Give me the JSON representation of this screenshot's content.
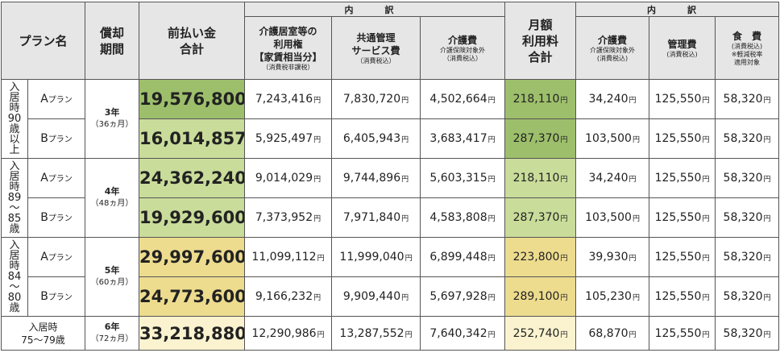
{
  "headers": {
    "plan": "プラン名",
    "period_1": "償却",
    "period_2": "期間",
    "prepay_1": "前払い金",
    "prepay_2": "合計",
    "uchiwake": "内　訳",
    "col_kyoshitsu_1": "介護居室等の",
    "col_kyoshitsu_2": "利用権",
    "col_kyoshitsu_3": "【家賃相当分】",
    "col_kyoshitsu_4": "（消費税非課税）",
    "col_kyotsu_1": "共通管理",
    "col_kyotsu_2": "サービス費",
    "col_kyotsu_3": "（消費税込）",
    "col_kaigo_1": "介護費",
    "col_kaigo_2": "介護保険対象外",
    "col_kaigo_3": "（消費税込）",
    "monthly_1": "月額",
    "monthly_2": "利用料",
    "monthly_3": "合計",
    "m_kaigo_1": "介護費",
    "m_kaigo_2": "介護保険対象外",
    "m_kaigo_3": "(消費税込)",
    "m_kanri_1": "管理費",
    "m_kanri_2": "(消費税込)",
    "m_shokuhi_1": "食　費",
    "m_shokuhi_2": "(消費税込)",
    "m_shokuhi_3": "※軽減税率",
    "m_shokuhi_4": "適用対象"
  },
  "yen": "円",
  "groups": [
    {
      "age_chars": [
        "入",
        "居",
        "時",
        "90",
        "歳",
        "以",
        "上"
      ],
      "period_main": "3年",
      "period_sub": "（36ヵ月）",
      "rows": [
        {
          "plan_letter": "A",
          "plan_suffix": "プラン",
          "prepay": "19,576,800",
          "kyoshitsu": "7,243,416",
          "kyotsu": "7,830,720",
          "kaigo": "4,502,664",
          "monthly": "218,110",
          "m_kaigo": "34,240",
          "m_kanri": "125,550",
          "m_shokuhi": "58,320"
        },
        {
          "plan_letter": "B",
          "plan_suffix": "プラン",
          "prepay": "16,014,857",
          "kyoshitsu": "5,925,497",
          "kyotsu": "6,405,943",
          "kaigo": "3,683,417",
          "monthly": "287,370",
          "m_kaigo": "103,500",
          "m_kanri": "125,550",
          "m_shokuhi": "58,320"
        }
      ]
    },
    {
      "age_chars": [
        "入",
        "居",
        "時",
        "89",
        "〜",
        "85",
        "歳"
      ],
      "period_main": "4年",
      "period_sub": "（48ヵ月）",
      "rows": [
        {
          "plan_letter": "A",
          "plan_suffix": "プラン",
          "prepay": "24,362,240",
          "kyoshitsu": "9,014,029",
          "kyotsu": "9,744,896",
          "kaigo": "5,603,315",
          "monthly": "218,110",
          "m_kaigo": "34,240",
          "m_kanri": "125,550",
          "m_shokuhi": "58,320"
        },
        {
          "plan_letter": "B",
          "plan_suffix": "プラン",
          "prepay": "19,929,600",
          "kyoshitsu": "7,373,952",
          "kyotsu": "7,971,840",
          "kaigo": "4,583,808",
          "monthly": "287,370",
          "m_kaigo": "103,500",
          "m_kanri": "125,550",
          "m_shokuhi": "58,320"
        }
      ]
    },
    {
      "age_chars": [
        "入",
        "居",
        "時",
        "84",
        "〜",
        "80",
        "歳"
      ],
      "period_main": "5年",
      "period_sub": "（60ヵ月）",
      "rows": [
        {
          "plan_letter": "A",
          "plan_suffix": "プラン",
          "prepay": "29,997,600",
          "kyoshitsu": "11,099,112",
          "kyotsu": "11,999,040",
          "kaigo": "6,899,448",
          "monthly": "223,800",
          "m_kaigo": "39,930",
          "m_kanri": "125,550",
          "m_shokuhi": "58,320"
        },
        {
          "plan_letter": "B",
          "plan_suffix": "プラン",
          "prepay": "24,773,600",
          "kyoshitsu": "9,166,232",
          "kyotsu": "9,909,440",
          "kaigo": "5,697,928",
          "monthly": "289,100",
          "m_kaigo": "105,230",
          "m_kanri": "125,550",
          "m_shokuhi": "58,320"
        }
      ]
    }
  ],
  "last": {
    "label_1": "入居時",
    "label_2": "75〜79歳",
    "period_main": "6年",
    "period_sub": "（72ヵ月）",
    "prepay": "33,218,880",
    "kyoshitsu": "12,290,986",
    "kyotsu": "13,287,552",
    "kaigo": "7,640,342",
    "monthly": "252,740",
    "m_kaigo": "68,870",
    "m_kanri": "125,550",
    "m_shokuhi": "58,320"
  },
  "colors": {
    "header_bg": "#e6e6e6",
    "green_dark": "#9dbf6b",
    "green_light": "#c9dc9a",
    "yellow_mid": "#eddc8e",
    "yellow_light": "#fbf3cf"
  }
}
